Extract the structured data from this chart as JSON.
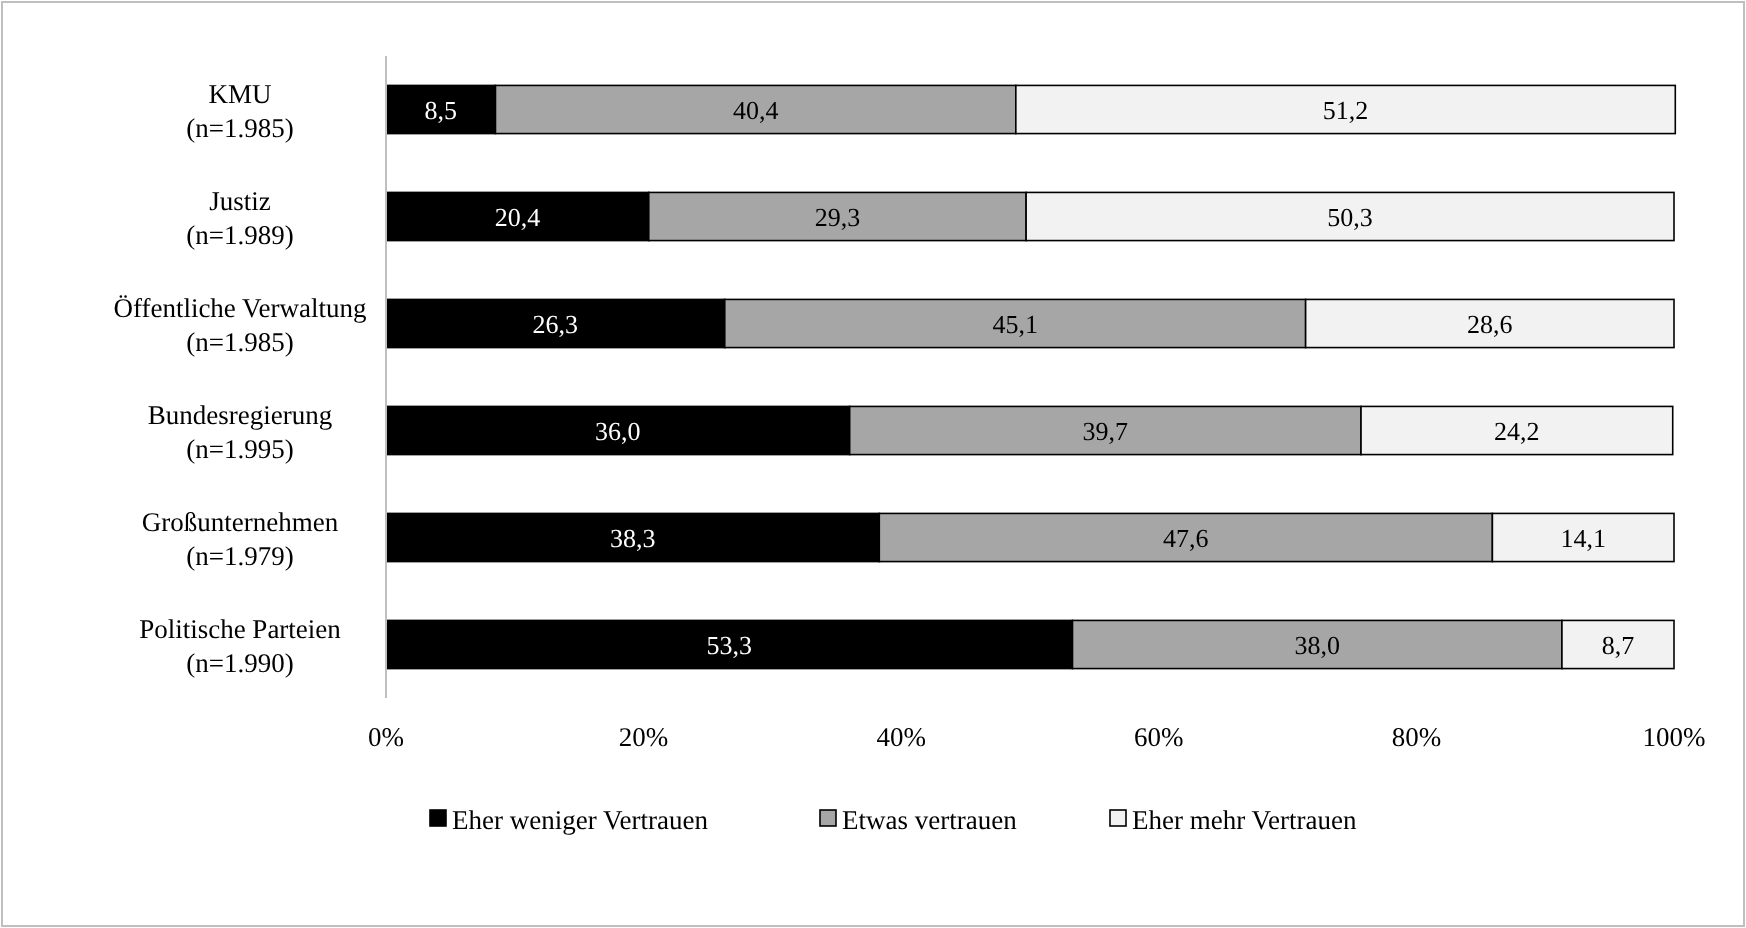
{
  "chart_data": {
    "type": "bar",
    "orientation": "horizontal",
    "stacked": true,
    "categories": [
      "KMU\n(n=1.985)",
      "Justiz\n(n=1.989)",
      "Öffentliche Verwaltung\n(n=1.985)",
      "Bundesregierung\n(n=1.995)",
      "Großunternehmen\n(n=1.979)",
      "Politische Parteien\n(n=1.990)"
    ],
    "series": [
      {
        "name": "Eher weniger Vertrauen",
        "color": "#000000",
        "values": [
          8.5,
          20.4,
          26.3,
          36.0,
          38.3,
          53.3
        ],
        "value_labels": [
          "8,5",
          "20,4",
          "26,3",
          "36,0",
          "38,3",
          "53,3"
        ]
      },
      {
        "name": "Etwas vertrauen",
        "color": "#a6a6a6",
        "values": [
          40.4,
          29.3,
          45.1,
          39.7,
          47.6,
          38.0
        ],
        "value_labels": [
          "40,4",
          "29,3",
          "45,1",
          "39,7",
          "47,6",
          "38,0"
        ]
      },
      {
        "name": "Eher mehr Vertrauen",
        "color": "#f2f2f2",
        "values": [
          51.2,
          50.3,
          28.6,
          24.2,
          14.1,
          8.7
        ],
        "value_labels": [
          "51,2",
          "50,3",
          "28,6",
          "24,2",
          "14,1",
          "8,7"
        ]
      }
    ],
    "xlim": [
      0,
      100
    ],
    "xticks": [
      {
        "value": 0,
        "label": "0%"
      },
      {
        "value": 20,
        "label": "20%"
      },
      {
        "value": 40,
        "label": "40%"
      },
      {
        "value": 60,
        "label": "60%"
      },
      {
        "value": 80,
        "label": "80%"
      },
      {
        "value": 100,
        "label": "100%"
      }
    ],
    "legend": "bottom",
    "grid": false
  }
}
